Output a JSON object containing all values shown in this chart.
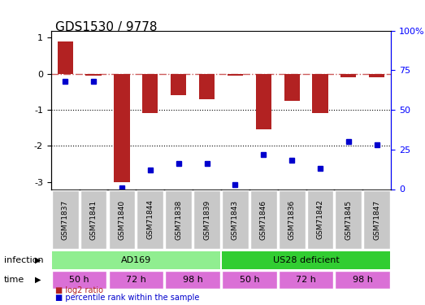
{
  "title": "GDS1530 / 9778",
  "samples": [
    "GSM71837",
    "GSM71841",
    "GSM71840",
    "GSM71844",
    "GSM71838",
    "GSM71839",
    "GSM71843",
    "GSM71846",
    "GSM71836",
    "GSM71842",
    "GSM71845",
    "GSM71847"
  ],
  "log2_ratio": [
    0.9,
    -0.05,
    -3.0,
    -1.1,
    -0.6,
    -0.7,
    -0.05,
    -1.55,
    -0.75,
    -1.1,
    -0.1,
    -0.1
  ],
  "pct_rank": [
    68,
    68,
    1,
    12,
    16,
    16,
    3,
    22,
    18,
    13,
    30,
    28
  ],
  "ylim_left": [
    -3.2,
    1.2
  ],
  "ylim_right": [
    0,
    100
  ],
  "yticks_left": [
    -3,
    -2,
    -1,
    0,
    1
  ],
  "yticks_right": [
    0,
    25,
    50,
    75,
    100
  ],
  "bar_color": "#b22222",
  "dot_color": "#0000cd",
  "dashed_line_color": "#cd5c5c",
  "infection_groups": [
    {
      "label": "AD169",
      "start": 0,
      "end": 5,
      "color": "#90ee90"
    },
    {
      "label": "US28 deficient",
      "start": 6,
      "end": 11,
      "color": "#32cd32"
    }
  ],
  "time_groups": [
    {
      "label": "50 h",
      "start": 0,
      "end": 1,
      "color": "#da70d6"
    },
    {
      "label": "72 h",
      "start": 2,
      "end": 3,
      "color": "#da70d6"
    },
    {
      "label": "98 h",
      "start": 4,
      "end": 5,
      "color": "#da70d6"
    },
    {
      "label": "50 h",
      "start": 6,
      "end": 7,
      "color": "#da70d6"
    },
    {
      "label": "72 h",
      "start": 8,
      "end": 9,
      "color": "#da70d6"
    },
    {
      "label": "98 h",
      "start": 10,
      "end": 11,
      "color": "#da70d6"
    }
  ],
  "legend_items": [
    {
      "label": "log2 ratio",
      "color": "#b22222"
    },
    {
      "label": "percentile rank within the sample",
      "color": "#0000cd"
    }
  ]
}
